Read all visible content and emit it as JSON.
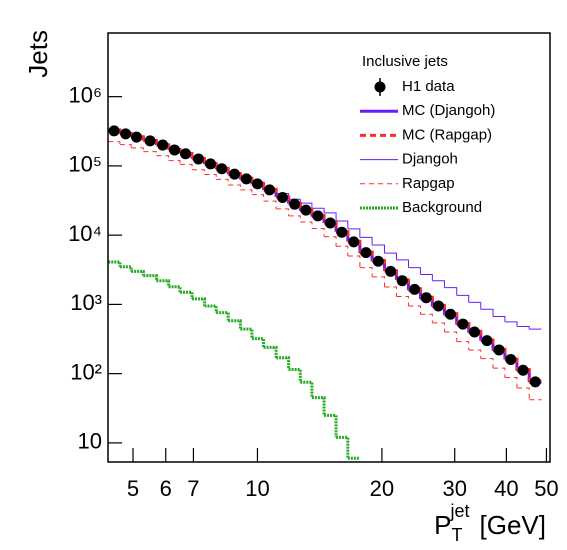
{
  "chart_data": {
    "type": "hist_loglog",
    "y_label": "Jets",
    "x_label": {
      "base": "P",
      "sub": "T",
      "sup": "jet",
      "unit": "[GeV]"
    },
    "legend_title": "Inclusive jets",
    "log_x": true,
    "log_y": true,
    "xlim": [
      4.35,
      51
    ],
    "ylim": [
      5.3,
      8300000
    ],
    "xticks": [
      5,
      6,
      7,
      10,
      20,
      30,
      40,
      50
    ],
    "yticks": [
      {
        "value": 10,
        "label": "10"
      },
      {
        "value": 100,
        "label": "10²"
      },
      {
        "value": 1000,
        "label": "10³"
      },
      {
        "value": 10000,
        "label": "10⁴"
      },
      {
        "value": 100000,
        "label": "10⁵"
      },
      {
        "value": 1000000,
        "label": "10⁶"
      }
    ],
    "x": [
      4.5,
      4.8,
      5.1,
      5.5,
      5.9,
      6.3,
      6.7,
      7.2,
      7.7,
      8.2,
      8.8,
      9.4,
      10.0,
      10.7,
      11.5,
      12.3,
      13.1,
      14.0,
      15.0,
      16.0,
      17.1,
      18.3,
      19.6,
      21.0,
      22.4,
      24.0,
      25.6,
      27.4,
      29.3,
      31.4,
      33.5,
      35.9,
      38.4,
      41.0,
      43.9,
      47.0
    ],
    "series": [
      {
        "name": "H1 data",
        "style": "points",
        "color": "#000000",
        "values": [
          320000,
          290000,
          260000,
          230000,
          200000,
          170000,
          150000,
          126000,
          107000,
          91000,
          76000,
          65000,
          55000,
          45000,
          35000,
          28000,
          23000,
          19000,
          15000,
          11000,
          8000,
          5600,
          4200,
          3000,
          2200,
          1650,
          1250,
          950,
          720,
          520,
          400,
          300,
          220,
          160,
          112,
          76
        ]
      },
      {
        "name": "MC (Djangoh)",
        "style": "solid",
        "width": 3,
        "color": "#6a1cff",
        "values": [
          330000,
          295000,
          262000,
          232000,
          200000,
          172000,
          150000,
          127000,
          106000,
          90000,
          76000,
          64000,
          54000,
          45000,
          35500,
          28500,
          22500,
          18500,
          15000,
          11200,
          8100,
          5500,
          4200,
          3050,
          2250,
          1600,
          1200,
          930,
          700,
          510,
          390,
          300,
          215,
          160,
          110,
          75
        ]
      },
      {
        "name": "MC (Rapgap)",
        "style": "dashed",
        "width": 3,
        "color": "#ff2a2a",
        "values": [
          325000,
          292000,
          262000,
          233000,
          202000,
          171000,
          151000,
          128000,
          108000,
          92000,
          77000,
          66000,
          56000,
          46000,
          35800,
          28600,
          23300,
          19300,
          15200,
          11200,
          8150,
          5700,
          4300,
          3050,
          2250,
          1680,
          1270,
          970,
          735,
          530,
          410,
          305,
          225,
          163,
          115,
          78
        ]
      },
      {
        "name": "Djangoh",
        "style": "solid",
        "width": 1,
        "color": "#6a1cff",
        "values": [
          320000,
          290000,
          260000,
          230000,
          200000,
          172000,
          152000,
          129000,
          110000,
          95000,
          80000,
          69000,
          58000,
          47000,
          40000,
          33000,
          29000,
          24500,
          21000,
          16000,
          12300,
          9300,
          7200,
          5500,
          4400,
          3400,
          2700,
          2200,
          1750,
          1350,
          1070,
          850,
          670,
          560,
          480,
          440
        ]
      },
      {
        "name": "Rapgap",
        "style": "dashed",
        "width": 1,
        "color": "#ff2a2a",
        "values": [
          224000,
          203000,
          182000,
          161000,
          140000,
          119000,
          105000,
          88000,
          75000,
          64000,
          53000,
          45000,
          38500,
          31000,
          24000,
          19000,
          15500,
          12500,
          9500,
          6900,
          5000,
          3400,
          2500,
          1780,
          1300,
          950,
          720,
          540,
          400,
          290,
          220,
          165,
          120,
          88,
          62,
          42
        ]
      },
      {
        "name": "Background",
        "style": "dotted",
        "width": 3,
        "color": "#22aa22",
        "values": [
          4100,
          3500,
          3000,
          2600,
          2200,
          1800,
          1500,
          1200,
          950,
          760,
          580,
          440,
          320,
          240,
          170,
          115,
          75,
          45,
          25,
          12,
          6,
          null,
          null,
          null,
          null,
          null,
          null,
          null,
          null,
          null,
          null,
          null,
          null,
          null,
          null,
          null
        ]
      }
    ]
  }
}
